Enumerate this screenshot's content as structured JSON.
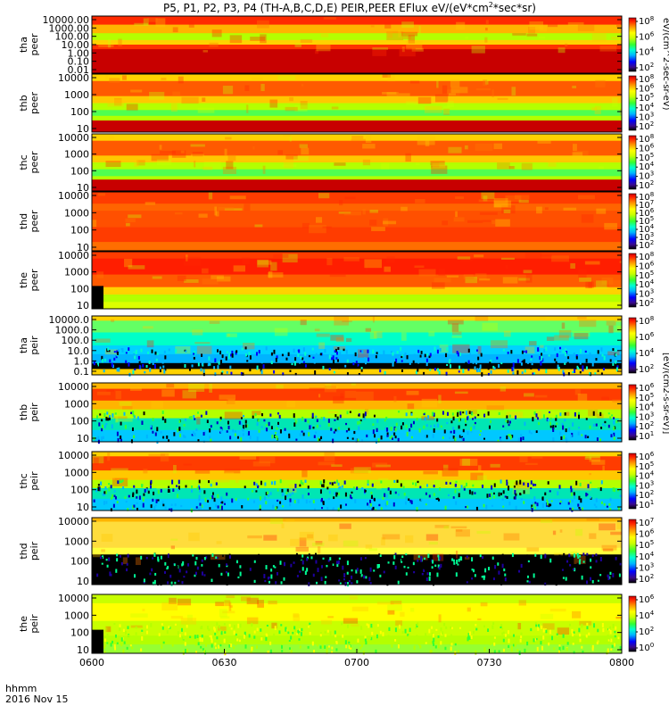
{
  "chart_data": {
    "type": "heatmap",
    "title": "P5, P1, P2, P3, P4 (TH-A,B,C,D,E) PEIR,PEER EFlux eV/(eV*cm",
    "title_sup": "2",
    "title_tail": "*sec*sr)",
    "x_ticks": [
      "0600",
      "0630",
      "0700",
      "0730",
      "0800"
    ],
    "x_label_line1": "hhmm",
    "x_label_line2": "2016 Nov 15",
    "colorbar_label_electron": "eV/(cm^2-sec-sr-eV)",
    "colorbar_label_ion": "[eV/(cm2-s-sr-eV)]",
    "panels": [
      {
        "name": "tha-peer",
        "ylabel": [
          "tha",
          "peer"
        ],
        "yticks": [
          "10000.00",
          "1000.00",
          "100.00",
          "10.00",
          "1.00",
          "0.10",
          "0.01"
        ],
        "cbar_ticks": [
          "10^8",
          "10^6",
          "10^4",
          "10^2"
        ]
      },
      {
        "name": "thb-peer",
        "ylabel": [
          "thb",
          "peer"
        ],
        "yticks": [
          "10000",
          "1000",
          "100",
          "10"
        ],
        "cbar_ticks": [
          "10^8",
          "10^6",
          "10^5",
          "10^4",
          "10^3",
          "10^2"
        ]
      },
      {
        "name": "thc-peer",
        "ylabel": [
          "thc",
          "peer"
        ],
        "yticks": [
          "10000",
          "1000",
          "100",
          "10"
        ],
        "cbar_ticks": [
          "10^8",
          "10^6",
          "10^5",
          "10^4",
          "10^3",
          "10^2"
        ]
      },
      {
        "name": "thd-peer",
        "ylabel": [
          "thd",
          "peer"
        ],
        "yticks": [
          "10000",
          "1000",
          "100",
          "10"
        ],
        "cbar_ticks": [
          "10^8",
          "10^7",
          "10^6",
          "10^5",
          "10^4",
          "10^3",
          "10^2"
        ]
      },
      {
        "name": "the-peer",
        "ylabel": [
          "the",
          "peer"
        ],
        "yticks": [
          "10000",
          "1000",
          "100",
          "10"
        ],
        "cbar_ticks": [
          "10^8",
          "10^6",
          "10^5",
          "10^4",
          "10^3",
          "10^2"
        ]
      },
      {
        "name": "tha-peir",
        "ylabel": [
          "tha",
          "peir"
        ],
        "yticks": [
          "10000.0",
          "1000.0",
          "100.0",
          "10.0",
          "1.0",
          "0.1"
        ],
        "cbar_ticks": [
          "10^8",
          "10^6",
          "10^4",
          "10^2"
        ]
      },
      {
        "name": "thb-peir",
        "ylabel": [
          "thb",
          "peir"
        ],
        "yticks": [
          "10000",
          "1000",
          "100",
          "10"
        ],
        "cbar_ticks": [
          "10^6",
          "10^5",
          "10^4",
          "10^3",
          "10^2",
          "10^1"
        ]
      },
      {
        "name": "thc-peir",
        "ylabel": [
          "thc",
          "peir"
        ],
        "yticks": [
          "10000",
          "1000",
          "100",
          "10"
        ],
        "cbar_ticks": [
          "10^6",
          "10^5",
          "10^4",
          "10^3",
          "10^2",
          "10^1"
        ]
      },
      {
        "name": "thd-peir",
        "ylabel": [
          "thd",
          "peir"
        ],
        "yticks": [
          "10000",
          "1000",
          "100",
          "10"
        ],
        "cbar_ticks": [
          "10^7",
          "10^6",
          "10^5",
          "10^4",
          "10^3",
          "10^2"
        ]
      },
      {
        "name": "the-peir",
        "ylabel": [
          "the",
          "peir"
        ],
        "yticks": [
          "10000",
          "1000",
          "100",
          "10"
        ],
        "cbar_ticks": [
          "10^6",
          "10^4",
          "10^2",
          "10^0"
        ]
      }
    ]
  }
}
